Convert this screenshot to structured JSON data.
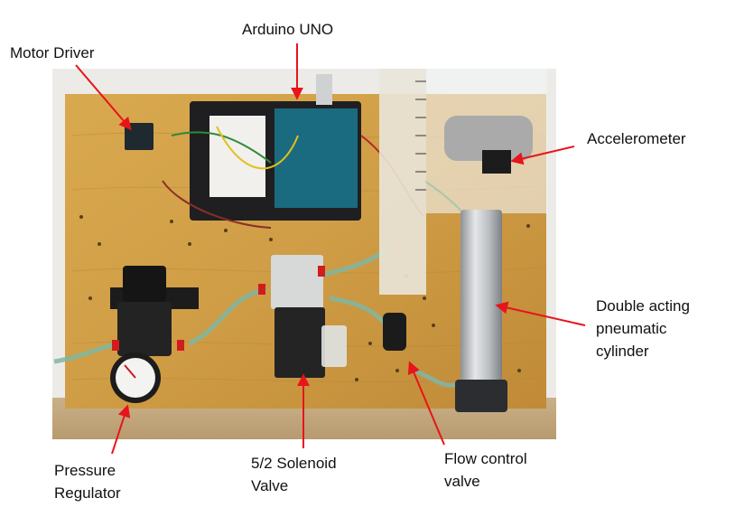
{
  "labels": {
    "arduino": "Arduino UNO",
    "motor_driver": "Motor Driver",
    "accelerometer": "Accelerometer",
    "cylinder_line1": "Double acting",
    "cylinder_line2": "pneumatic",
    "cylinder_line3": "cylinder",
    "regulator_line1": "Pressure",
    "regulator_line2": "Regulator",
    "solenoid_line1": "5/2 Solenoid",
    "solenoid_line2": "Valve",
    "flow_line1": "Flow control",
    "flow_line2": "valve"
  },
  "arrow_color": "#e8141b"
}
